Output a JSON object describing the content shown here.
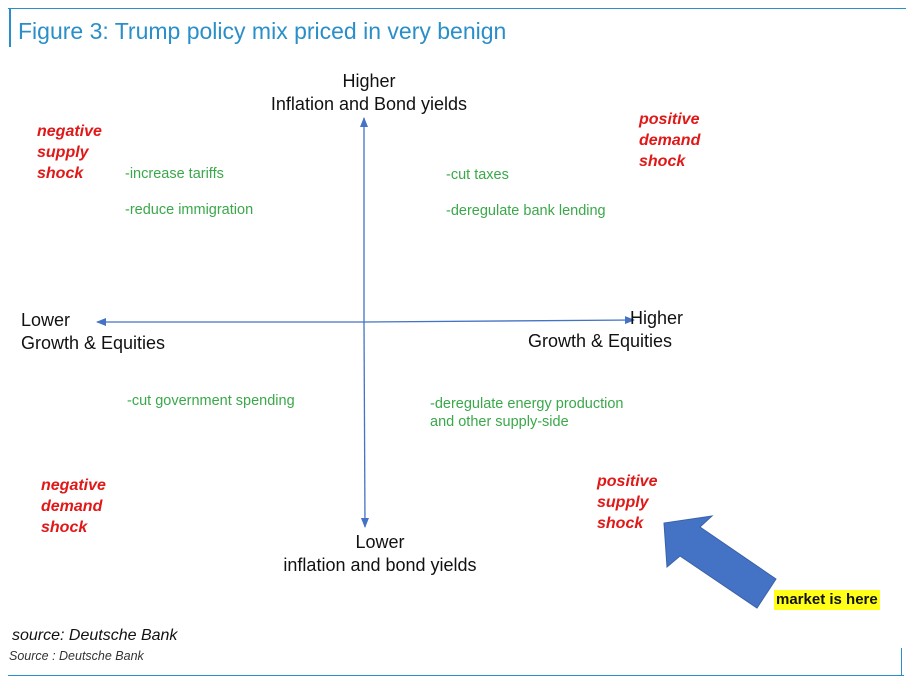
{
  "title": "Figure 3: Trump policy mix priced in very benign",
  "axes": {
    "top": [
      "Higher",
      "Inflation and Bond yields"
    ],
    "bottom": [
      "Lower",
      "inflation and bond yields"
    ],
    "left": [
      "Lower",
      "Growth & Equities"
    ],
    "right": [
      "Higher",
      "Growth & Equities"
    ]
  },
  "quadrants": {
    "top_left": {
      "shock": [
        "negative",
        "supply",
        "shock"
      ],
      "policies": [
        "-increase tariffs",
        "-reduce immigration"
      ]
    },
    "top_right": {
      "shock": [
        "positive",
        "demand",
        "shock"
      ],
      "policies": [
        "-cut taxes",
        "-deregulate bank lending"
      ]
    },
    "bottom_left": {
      "shock": [
        "negative",
        "demand",
        "shock"
      ],
      "policies": [
        "-cut government spending"
      ]
    },
    "bottom_right": {
      "shock": [
        "positive",
        "supply",
        "shock"
      ],
      "policies": [
        "-deregulate energy production",
        "and other supply-side"
      ]
    }
  },
  "callout": "market is here",
  "sources": [
    "source: Deutsche Bank",
    "Source : Deutsche Bank"
  ],
  "colors": {
    "frame": "#2a8fc9",
    "axis": "#4472c4",
    "shock_text": "#e01818",
    "policy_text": "#3aa84a",
    "callout_arrow": "#4472c4",
    "highlight": "#ffff19"
  }
}
